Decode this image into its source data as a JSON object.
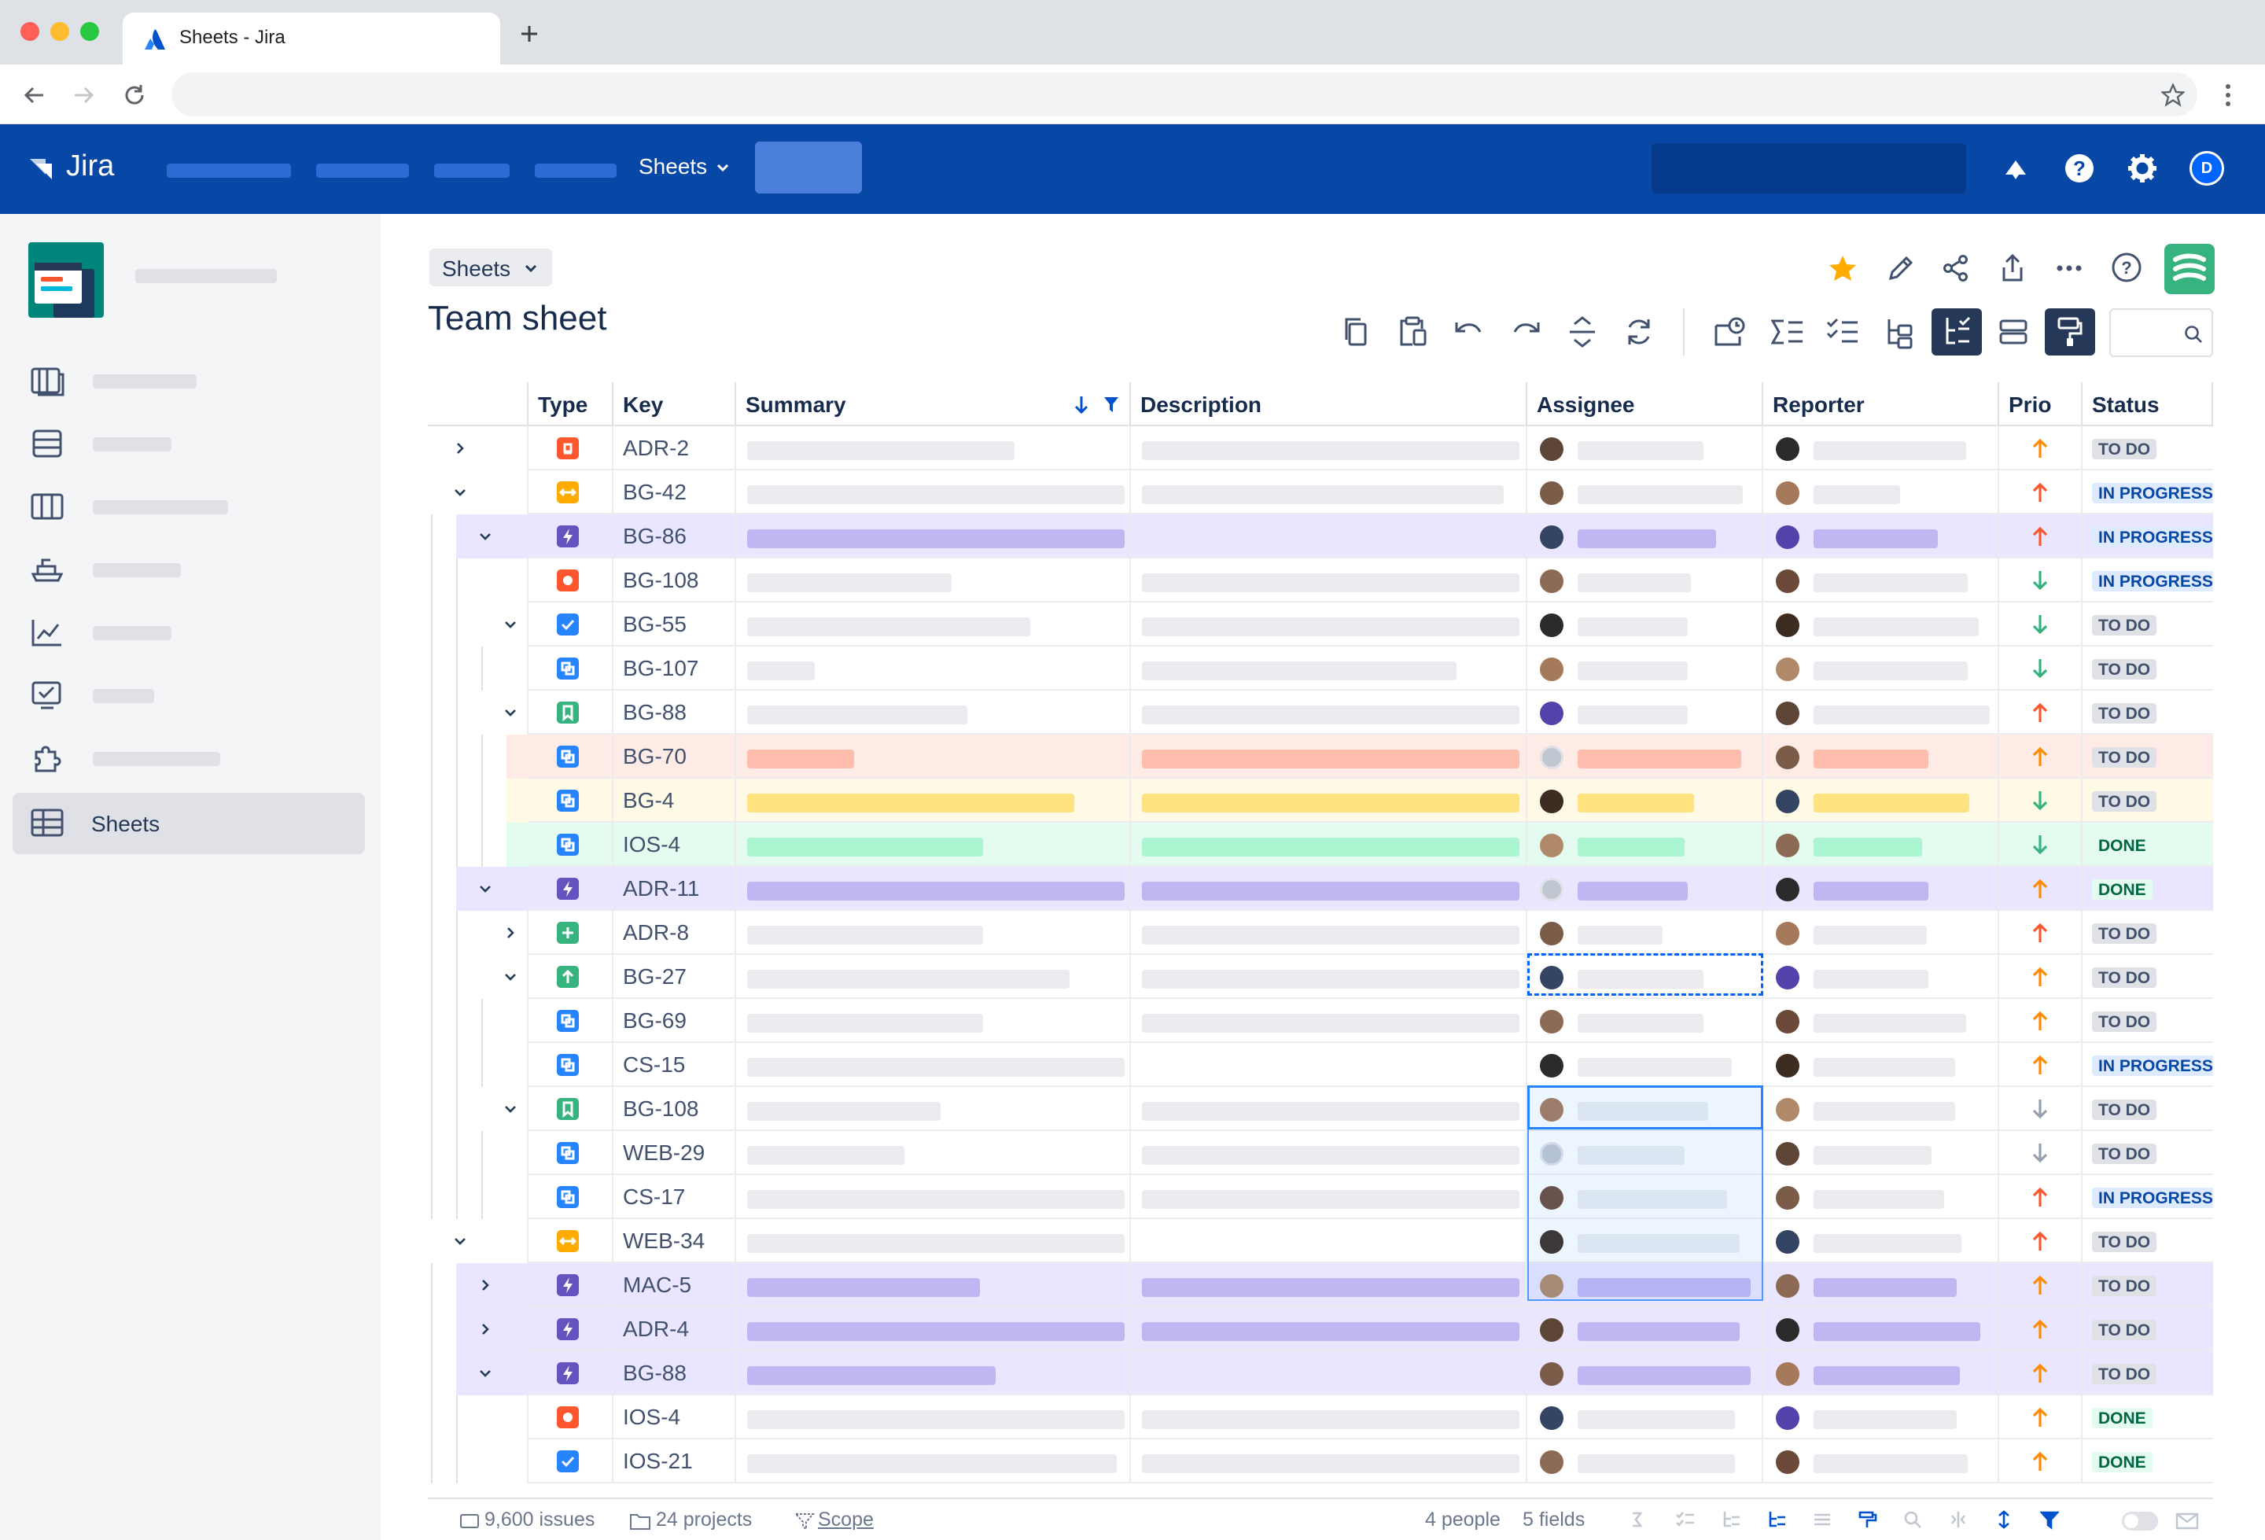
{
  "browser": {
    "tab_title": "Sheets - Jira",
    "new_tab": "+"
  },
  "nav": {
    "logo": "Jira",
    "sheets_menu": "Sheets",
    "avatar_initial": "D"
  },
  "sidebar": {
    "active_item": "Sheets"
  },
  "breadcrumb": "Sheets",
  "page_title": "Team sheet",
  "colors": {
    "nav_bg": "#0747a6",
    "accent": "#0052cc",
    "star": "#ffab00",
    "brand_green": "#36b37e"
  },
  "table": {
    "columns": [
      "Type",
      "Key",
      "Summary",
      "Description",
      "Assignee",
      "Reporter",
      "Prio",
      "Status"
    ],
    "rows": [
      {
        "key": "ADR-2",
        "type": "bug",
        "depth": 0,
        "toggle": "collapsed",
        "tint": "none",
        "prio": "up-orange",
        "status": "TO DO"
      },
      {
        "key": "BG-42",
        "type": "improvement",
        "depth": 0,
        "toggle": "expanded",
        "tint": "none",
        "prio": "up-red",
        "status": "IN PROGRESS"
      },
      {
        "key": "BG-86",
        "type": "epic",
        "depth": 1,
        "toggle": "expanded",
        "tint": "purple",
        "prio": "up-red",
        "status": "IN PROGRESS"
      },
      {
        "key": "BG-108",
        "type": "bug-circle",
        "depth": 2,
        "toggle": "none",
        "tint": "none",
        "prio": "down-green",
        "status": "IN PROGRESS"
      },
      {
        "key": "BG-55",
        "type": "task",
        "depth": 2,
        "toggle": "expanded",
        "tint": "none",
        "prio": "down-green",
        "status": "TO DO"
      },
      {
        "key": "BG-107",
        "type": "subtask",
        "depth": 3,
        "toggle": "none",
        "tint": "none",
        "prio": "down-green",
        "status": "TO DO"
      },
      {
        "key": "BG-88",
        "type": "story",
        "depth": 2,
        "toggle": "expanded",
        "tint": "none",
        "prio": "up-red",
        "status": "TO DO"
      },
      {
        "key": "BG-70",
        "type": "subtask",
        "depth": 3,
        "toggle": "none",
        "tint": "red",
        "prio": "up-orange",
        "status": "TO DO"
      },
      {
        "key": "BG-4",
        "type": "subtask",
        "depth": 3,
        "toggle": "none",
        "tint": "yellow",
        "prio": "down-green",
        "status": "TO DO"
      },
      {
        "key": "IOS-4",
        "type": "subtask",
        "depth": 3,
        "toggle": "none",
        "tint": "green",
        "prio": "down-green",
        "status": "DONE"
      },
      {
        "key": "ADR-11",
        "type": "epic",
        "depth": 1,
        "toggle": "expanded",
        "tint": "purple",
        "prio": "up-orange",
        "status": "DONE"
      },
      {
        "key": "ADR-8",
        "type": "new-feature",
        "depth": 2,
        "toggle": "collapsed",
        "tint": "none",
        "prio": "up-red",
        "status": "TO DO"
      },
      {
        "key": "BG-27",
        "type": "improvement-green",
        "depth": 2,
        "toggle": "expanded",
        "tint": "none",
        "prio": "up-orange",
        "status": "TO DO"
      },
      {
        "key": "BG-69",
        "type": "subtask",
        "depth": 3,
        "toggle": "none",
        "tint": "none",
        "prio": "up-orange",
        "status": "TO DO"
      },
      {
        "key": "CS-15",
        "type": "subtask",
        "depth": 3,
        "toggle": "none",
        "tint": "none",
        "prio": "up-orange",
        "status": "IN PROGRESS"
      },
      {
        "key": "BG-108",
        "type": "story",
        "depth": 2,
        "toggle": "expanded",
        "tint": "none",
        "prio": "down-gray",
        "status": "TO DO"
      },
      {
        "key": "WEB-29",
        "type": "subtask",
        "depth": 3,
        "toggle": "none",
        "tint": "none",
        "prio": "down-gray",
        "status": "TO DO"
      },
      {
        "key": "CS-17",
        "type": "subtask",
        "depth": 3,
        "toggle": "none",
        "tint": "none",
        "prio": "up-red",
        "status": "IN PROGRESS"
      },
      {
        "key": "WEB-34",
        "type": "improvement",
        "depth": 0,
        "toggle": "expanded",
        "tint": "none",
        "prio": "up-red",
        "status": "TO DO"
      },
      {
        "key": "MAC-5",
        "type": "epic",
        "depth": 1,
        "toggle": "collapsed",
        "tint": "purple",
        "prio": "up-orange",
        "status": "TO DO"
      },
      {
        "key": "ADR-4",
        "type": "epic",
        "depth": 1,
        "toggle": "collapsed",
        "tint": "purple",
        "prio": "up-orange",
        "status": "TO DO"
      },
      {
        "key": "BG-88",
        "type": "epic",
        "depth": 1,
        "toggle": "expanded",
        "tint": "purple",
        "prio": "up-orange",
        "status": "TO DO"
      },
      {
        "key": "IOS-4",
        "type": "bug-circle",
        "depth": 2,
        "toggle": "none",
        "tint": "none",
        "prio": "up-orange",
        "status": "DONE"
      },
      {
        "key": "IOS-21",
        "type": "task",
        "depth": 2,
        "toggle": "none",
        "tint": "none",
        "prio": "up-orange",
        "status": "DONE"
      }
    ]
  },
  "footer": {
    "issues": "9,600 issues",
    "projects": "24 projects",
    "scope": "Scope",
    "people": "4 people",
    "fields": "5 fields"
  }
}
